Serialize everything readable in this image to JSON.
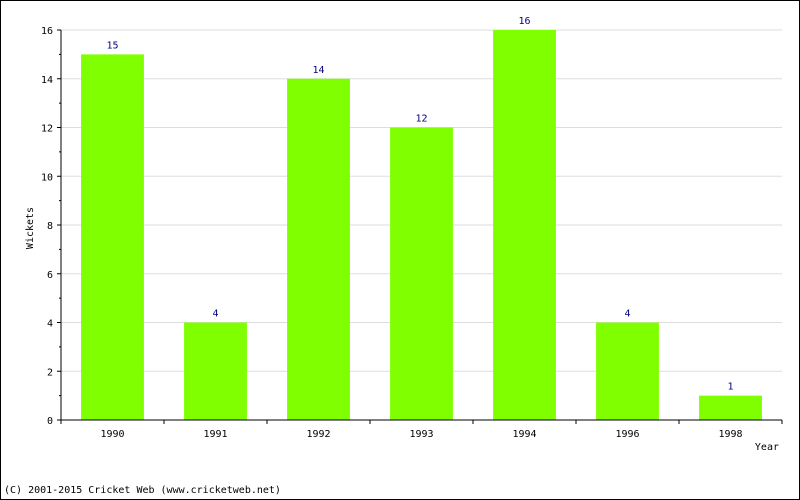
{
  "chart_data": {
    "type": "bar",
    "categories": [
      "1990",
      "1991",
      "1992",
      "1993",
      "1994",
      "1996",
      "1998"
    ],
    "values": [
      15,
      4,
      14,
      12,
      16,
      4,
      1
    ],
    "data_labels": [
      "15",
      "4",
      "14",
      "12",
      "16",
      "4",
      "1"
    ],
    "ylim": [
      0,
      16
    ],
    "y_ticks": [
      "0",
      "2",
      "4",
      "6",
      "8",
      "10",
      "12",
      "14",
      "16"
    ],
    "xlabel": "Year",
    "ylabel": "Wickets",
    "title": "",
    "grid": "horizontal",
    "colors": {
      "bar": "#80ff00",
      "data_label": "#000080",
      "grid": "#dddddd",
      "axis": "#000000"
    }
  },
  "footer": {
    "copyright": "(C) 2001-2015 Cricket Web (www.cricketweb.net)"
  }
}
